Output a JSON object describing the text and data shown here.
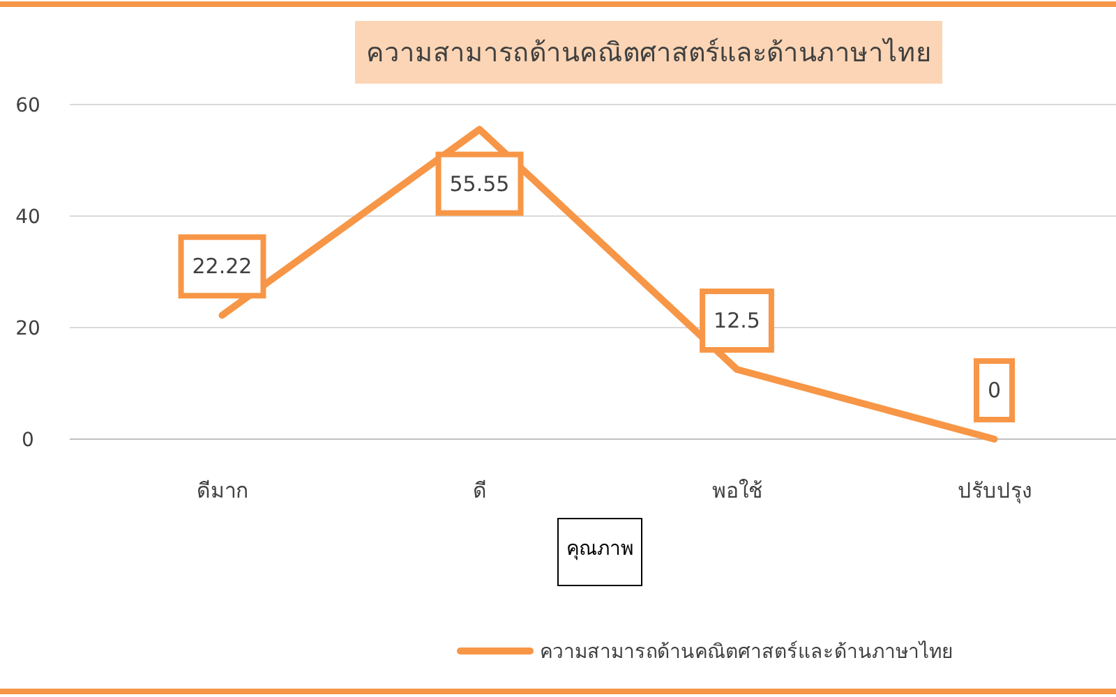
{
  "chart_data": {
    "type": "line",
    "title": "ความสามารถด้านคณิตศาสตร์และด้านภาษาไทย",
    "xlabel": "คุณภาพ",
    "categories": [
      "ดีมาก",
      "ดี",
      "พอใช้",
      "ปรับปรุง"
    ],
    "series": [
      {
        "name": "ความสามารถด้านคณิตศาสตร์และด้านภาษาไทย",
        "color": "#f79646",
        "values": [
          22.22,
          55.55,
          12.5,
          0
        ]
      }
    ],
    "ylim": [
      0,
      60
    ],
    "yticks": [
      0,
      20,
      40,
      60
    ],
    "grid": "y",
    "data_labels": true,
    "legend": "bottom",
    "line_style": "solid"
  }
}
